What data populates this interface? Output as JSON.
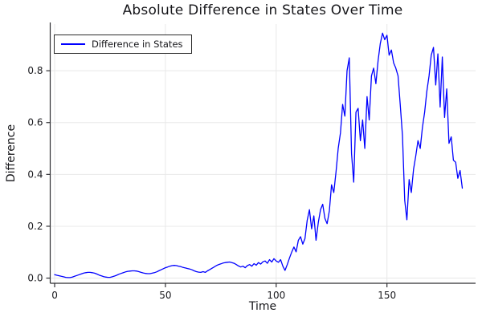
{
  "title": "Absolute Difference in States Over Time",
  "axes": {
    "xlabel": "Time",
    "ylabel": "Difference"
  },
  "legend": {
    "position": "top-left",
    "items": [
      {
        "label": "Difference in States",
        "color": "#0000ff"
      }
    ]
  },
  "colors": {
    "line": "#0000ff",
    "grid": "#e8e8e8",
    "spine": "#2e2e32",
    "tick_text": "#1a1a1e",
    "background": "#ffffff"
  },
  "chart_data": {
    "type": "line",
    "title": "Absolute Difference in States Over Time",
    "xlabel": "Time",
    "ylabel": "Difference",
    "grid": true,
    "legend_position": "top-left",
    "xlim": [
      -2,
      190
    ],
    "ylim": [
      -0.02,
      0.98
    ],
    "x_ticks": [
      0,
      50,
      100,
      150
    ],
    "x_tick_labels": [
      "0",
      "50",
      "100",
      "150"
    ],
    "y_ticks": [
      0.0,
      0.2,
      0.4,
      0.6,
      0.8
    ],
    "y_tick_labels": [
      "0.0",
      "0.2",
      "0.4",
      "0.6",
      "0.8"
    ],
    "series": [
      {
        "name": "Difference in States",
        "color": "#0000ff",
        "x": [
          0,
          1,
          2,
          3,
          4,
          5,
          6,
          7,
          8,
          9,
          10,
          11,
          12,
          13,
          14,
          15,
          16,
          17,
          18,
          19,
          20,
          21,
          22,
          23,
          24,
          25,
          26,
          27,
          28,
          29,
          30,
          31,
          32,
          33,
          34,
          35,
          36,
          37,
          38,
          39,
          40,
          41,
          42,
          43,
          44,
          45,
          46,
          47,
          48,
          49,
          50,
          51,
          52,
          53,
          54,
          55,
          56,
          57,
          58,
          59,
          60,
          61,
          62,
          63,
          64,
          65,
          66,
          67,
          68,
          69,
          70,
          71,
          72,
          73,
          74,
          75,
          76,
          77,
          78,
          79,
          80,
          81,
          82,
          83,
          84,
          85,
          86,
          87,
          88,
          89,
          90,
          91,
          92,
          93,
          94,
          95,
          96,
          97,
          98,
          99,
          100,
          101,
          102,
          103,
          104,
          105,
          106,
          107,
          108,
          109,
          110,
          111,
          112,
          113,
          114,
          115,
          116,
          117,
          118,
          119,
          120,
          121,
          122,
          123,
          124,
          125,
          126,
          127,
          128,
          129,
          130,
          131,
          132,
          133,
          134,
          135,
          136,
          137,
          138,
          139,
          140,
          141,
          142,
          143,
          144,
          145,
          146,
          147,
          148,
          149,
          150,
          151,
          152,
          153,
          154,
          155,
          156,
          157,
          158,
          159,
          160,
          161,
          162,
          163,
          164,
          165,
          166,
          167,
          168,
          169,
          170,
          171,
          172,
          173,
          174,
          175,
          176,
          177,
          178,
          179,
          180,
          181,
          182,
          183,
          184
        ],
        "y": [
          0.013,
          0.011,
          0.009,
          0.007,
          0.005,
          0.003,
          0.002,
          0.002,
          0.004,
          0.007,
          0.01,
          0.013,
          0.016,
          0.019,
          0.021,
          0.022,
          0.022,
          0.021,
          0.019,
          0.016,
          0.012,
          0.009,
          0.006,
          0.004,
          0.003,
          0.003,
          0.005,
          0.008,
          0.011,
          0.015,
          0.018,
          0.021,
          0.024,
          0.026,
          0.027,
          0.028,
          0.028,
          0.027,
          0.025,
          0.022,
          0.02,
          0.018,
          0.017,
          0.017,
          0.019,
          0.021,
          0.024,
          0.028,
          0.032,
          0.036,
          0.04,
          0.043,
          0.046,
          0.048,
          0.049,
          0.048,
          0.046,
          0.044,
          0.041,
          0.039,
          0.037,
          0.035,
          0.032,
          0.028,
          0.025,
          0.023,
          0.022,
          0.025,
          0.022,
          0.028,
          0.033,
          0.038,
          0.043,
          0.048,
          0.052,
          0.055,
          0.058,
          0.06,
          0.061,
          0.062,
          0.06,
          0.057,
          0.052,
          0.047,
          0.043,
          0.046,
          0.04,
          0.048,
          0.052,
          0.046,
          0.056,
          0.05,
          0.06,
          0.054,
          0.063,
          0.066,
          0.057,
          0.071,
          0.062,
          0.075,
          0.066,
          0.061,
          0.071,
          0.046,
          0.03,
          0.052,
          0.077,
          0.1,
          0.12,
          0.101,
          0.146,
          0.16,
          0.131,
          0.152,
          0.223,
          0.264,
          0.19,
          0.24,
          0.146,
          0.214,
          0.264,
          0.285,
          0.23,
          0.21,
          0.26,
          0.36,
          0.33,
          0.41,
          0.5,
          0.56,
          0.67,
          0.625,
          0.8,
          0.85,
          0.48,
          0.37,
          0.64,
          0.655,
          0.53,
          0.61,
          0.5,
          0.7,
          0.61,
          0.78,
          0.81,
          0.75,
          0.84,
          0.905,
          0.945,
          0.92,
          0.937,
          0.86,
          0.88,
          0.83,
          0.81,
          0.78,
          0.67,
          0.55,
          0.3,
          0.225,
          0.38,
          0.33,
          0.42,
          0.47,
          0.53,
          0.5,
          0.58,
          0.64,
          0.72,
          0.78,
          0.86,
          0.89,
          0.745,
          0.865,
          0.66,
          0.853,
          0.62,
          0.73,
          0.52,
          0.545,
          0.455,
          0.447,
          0.385,
          0.415,
          0.347
        ]
      }
    ]
  }
}
